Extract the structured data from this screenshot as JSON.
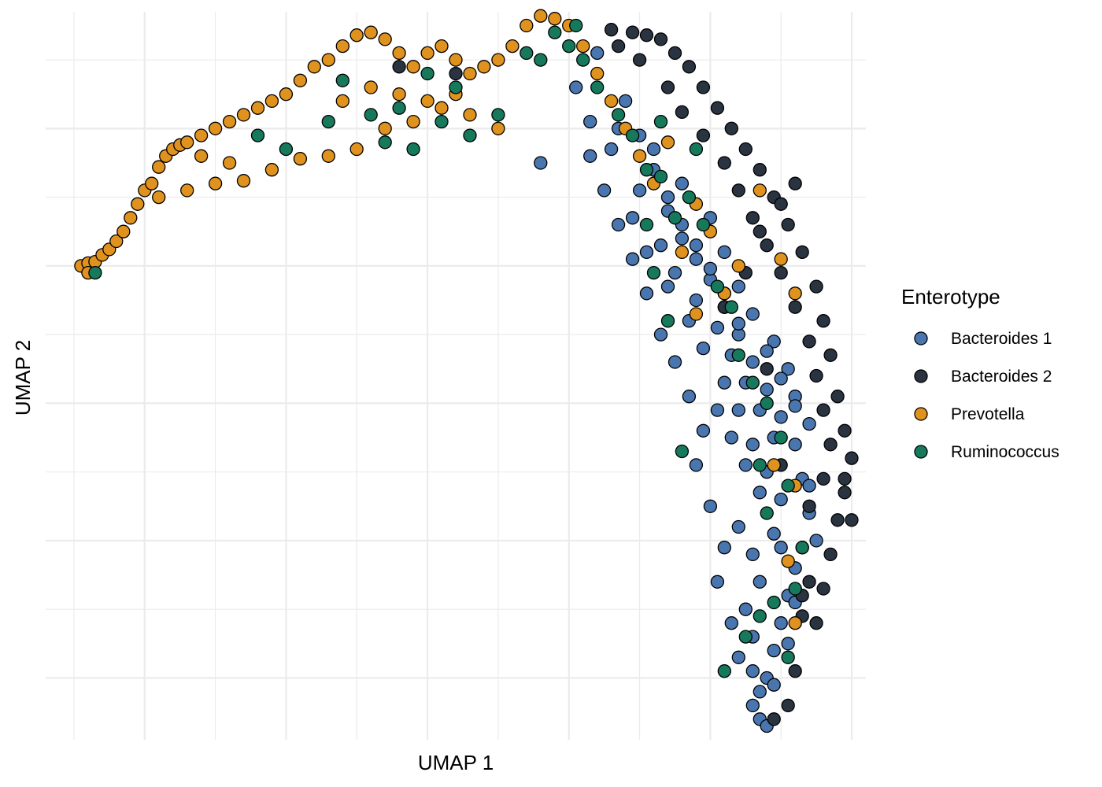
{
  "chart_data": {
    "type": "scatter",
    "title": "",
    "xlabel": "UMAP 1",
    "ylabel": "UMAP 2",
    "xlim": [
      -3.7,
      2.1
    ],
    "ylim": [
      -3.45,
      1.85
    ],
    "x_major_ticks": [
      -3,
      -2,
      -1,
      0,
      1,
      2
    ],
    "y_major_ticks": [
      -3,
      -2,
      -1,
      0,
      1
    ],
    "tick_labels_visible": false,
    "grid": true,
    "legend": {
      "title": "Enterotype",
      "position": "right"
    },
    "series": [
      {
        "name": "Bacteroides 1",
        "color": "#4a76b0",
        "points": [
          [
            -0.2,
            0.75
          ],
          [
            0.05,
            1.3
          ],
          [
            0.15,
            1.05
          ],
          [
            0.2,
            1.55
          ],
          [
            0.35,
            1.0
          ],
          [
            0.4,
            1.2
          ],
          [
            0.5,
            0.95
          ],
          [
            0.6,
            0.7
          ],
          [
            0.7,
            0.4
          ],
          [
            0.8,
            0.2
          ],
          [
            0.9,
            0.05
          ],
          [
            1.0,
            -0.1
          ],
          [
            1.1,
            -0.3
          ],
          [
            1.2,
            -0.5
          ],
          [
            1.3,
            -0.7
          ],
          [
            1.4,
            -0.9
          ],
          [
            1.5,
            -1.1
          ],
          [
            1.6,
            -1.3
          ],
          [
            1.65,
            -1.55
          ],
          [
            1.7,
            -1.8
          ],
          [
            1.75,
            -2.0
          ],
          [
            1.6,
            -2.2
          ],
          [
            1.55,
            -2.4
          ],
          [
            1.5,
            -2.6
          ],
          [
            1.45,
            -2.8
          ],
          [
            1.4,
            -3.0
          ],
          [
            1.35,
            -3.1
          ],
          [
            1.3,
            -3.2
          ],
          [
            1.35,
            -3.3
          ],
          [
            1.4,
            -3.35
          ],
          [
            0.3,
            0.85
          ],
          [
            0.5,
            0.55
          ],
          [
            0.65,
            0.15
          ],
          [
            0.75,
            -0.05
          ],
          [
            0.9,
            -0.25
          ],
          [
            1.05,
            -0.45
          ],
          [
            1.15,
            -0.65
          ],
          [
            1.25,
            -0.85
          ],
          [
            1.35,
            -1.05
          ],
          [
            1.45,
            -1.25
          ],
          [
            0.45,
            0.35
          ],
          [
            0.55,
            0.1
          ],
          [
            0.7,
            -0.15
          ],
          [
            0.85,
            -0.4
          ],
          [
            0.95,
            -0.6
          ],
          [
            1.1,
            -0.85
          ],
          [
            1.2,
            -1.05
          ],
          [
            1.3,
            -1.3
          ],
          [
            1.4,
            -1.5
          ],
          [
            1.5,
            -1.7
          ],
          [
            0.6,
            0.85
          ],
          [
            0.8,
            0.6
          ],
          [
            1.0,
            0.35
          ],
          [
            1.1,
            0.1
          ],
          [
            1.2,
            -0.15
          ],
          [
            1.3,
            -0.35
          ],
          [
            1.45,
            -0.55
          ],
          [
            1.55,
            -0.75
          ],
          [
            1.6,
            -0.95
          ],
          [
            1.7,
            -1.15
          ],
          [
            1.2,
            -1.9
          ],
          [
            1.3,
            -2.1
          ],
          [
            1.35,
            -2.3
          ],
          [
            1.25,
            -2.5
          ],
          [
            1.3,
            -2.7
          ],
          [
            1.2,
            -2.85
          ],
          [
            1.15,
            -2.6
          ],
          [
            1.05,
            -2.3
          ],
          [
            1.1,
            -2.05
          ],
          [
            1.0,
            -1.75
          ],
          [
            0.9,
            -1.45
          ],
          [
            0.95,
            -1.2
          ],
          [
            0.85,
            -0.95
          ],
          [
            0.75,
            -0.7
          ],
          [
            0.65,
            -0.5
          ],
          [
            0.55,
            -0.2
          ],
          [
            0.45,
            0.05
          ],
          [
            0.35,
            0.3
          ],
          [
            0.25,
            0.55
          ],
          [
            0.15,
            0.8
          ],
          [
            1.5,
            -2.05
          ],
          [
            1.6,
            -2.45
          ],
          [
            1.55,
            -2.75
          ],
          [
            1.45,
            -3.05
          ],
          [
            1.3,
            -2.95
          ],
          [
            1.45,
            -1.95
          ],
          [
            1.35,
            -1.65
          ],
          [
            1.25,
            -1.45
          ],
          [
            1.15,
            -1.25
          ],
          [
            1.05,
            -1.05
          ],
          [
            0.7,
            0.5
          ],
          [
            0.8,
            0.3
          ],
          [
            0.9,
            0.15
          ],
          [
            1.0,
            -0.02
          ],
          [
            1.1,
            -0.2
          ],
          [
            1.2,
            -0.42
          ],
          [
            1.4,
            -0.62
          ],
          [
            1.5,
            -0.82
          ],
          [
            1.6,
            -1.02
          ],
          [
            1.7,
            -1.6
          ]
        ]
      },
      {
        "name": "Bacteroides 2",
        "color": "#2a3340",
        "points": [
          [
            -1.2,
            1.45
          ],
          [
            -0.8,
            1.4
          ],
          [
            0.3,
            1.72
          ],
          [
            0.45,
            1.7
          ],
          [
            0.55,
            1.68
          ],
          [
            0.65,
            1.65
          ],
          [
            0.75,
            1.55
          ],
          [
            0.85,
            1.45
          ],
          [
            0.95,
            1.3
          ],
          [
            1.05,
            1.15
          ],
          [
            1.15,
            1.0
          ],
          [
            1.25,
            0.85
          ],
          [
            1.35,
            0.7
          ],
          [
            1.45,
            0.5
          ],
          [
            1.55,
            0.3
          ],
          [
            1.65,
            0.1
          ],
          [
            1.75,
            -0.15
          ],
          [
            1.8,
            -0.4
          ],
          [
            1.85,
            -0.65
          ],
          [
            1.9,
            -0.95
          ],
          [
            1.95,
            -1.2
          ],
          [
            2.0,
            -1.4
          ],
          [
            1.95,
            -1.65
          ],
          [
            1.9,
            -1.85
          ],
          [
            1.85,
            -2.1
          ],
          [
            1.8,
            -2.35
          ],
          [
            1.75,
            -2.6
          ],
          [
            1.6,
            -2.95
          ],
          [
            1.55,
            -3.2
          ],
          [
            1.45,
            -3.3
          ],
          [
            0.35,
            1.6
          ],
          [
            0.5,
            1.5
          ],
          [
            0.7,
            1.3
          ],
          [
            0.8,
            1.12
          ],
          [
            0.95,
            0.95
          ],
          [
            1.1,
            0.75
          ],
          [
            1.2,
            0.55
          ],
          [
            1.3,
            0.35
          ],
          [
            1.4,
            0.15
          ],
          [
            1.5,
            -0.05
          ],
          [
            1.6,
            -0.3
          ],
          [
            1.7,
            -0.55
          ],
          [
            1.75,
            -0.8
          ],
          [
            1.8,
            -1.05
          ],
          [
            1.85,
            -1.3
          ],
          [
            1.8,
            -1.55
          ],
          [
            1.7,
            -1.75
          ],
          [
            1.65,
            -2.05
          ],
          [
            1.7,
            -2.3
          ],
          [
            1.65,
            -2.55
          ],
          [
            1.1,
            -0.3
          ],
          [
            1.25,
            -0.05
          ],
          [
            1.35,
            0.25
          ],
          [
            1.5,
            0.45
          ],
          [
            1.6,
            0.6
          ],
          [
            1.65,
            -2.4
          ],
          [
            1.5,
            -1.45
          ],
          [
            1.4,
            -0.75
          ],
          [
            1.95,
            -1.55
          ],
          [
            2.0,
            -1.85
          ]
        ]
      },
      {
        "name": "Prevotella",
        "color": "#e0921f",
        "points": [
          [
            -3.45,
            0.0
          ],
          [
            -3.4,
            0.02
          ],
          [
            -3.35,
            0.03
          ],
          [
            -3.4,
            -0.05
          ],
          [
            -3.3,
            0.08
          ],
          [
            -3.25,
            0.12
          ],
          [
            -3.2,
            0.18
          ],
          [
            -3.15,
            0.25
          ],
          [
            -3.1,
            0.35
          ],
          [
            -3.05,
            0.45
          ],
          [
            -3.0,
            0.55
          ],
          [
            -2.95,
            0.6
          ],
          [
            -2.9,
            0.72
          ],
          [
            -2.85,
            0.8
          ],
          [
            -2.8,
            0.85
          ],
          [
            -2.75,
            0.88
          ],
          [
            -2.7,
            0.9
          ],
          [
            -2.6,
            0.95
          ],
          [
            -2.5,
            1.0
          ],
          [
            -2.4,
            1.05
          ],
          [
            -2.3,
            1.1
          ],
          [
            -2.2,
            1.15
          ],
          [
            -2.1,
            1.2
          ],
          [
            -2.0,
            1.25
          ],
          [
            -1.9,
            1.35
          ],
          [
            -1.8,
            1.45
          ],
          [
            -1.7,
            1.5
          ],
          [
            -1.6,
            1.6
          ],
          [
            -1.5,
            1.68
          ],
          [
            -1.4,
            1.7
          ],
          [
            -1.3,
            1.65
          ],
          [
            -1.2,
            1.55
          ],
          [
            -1.1,
            1.45
          ],
          [
            -1.0,
            1.55
          ],
          [
            -0.9,
            1.6
          ],
          [
            -0.8,
            1.5
          ],
          [
            -0.7,
            1.4
          ],
          [
            -0.6,
            1.45
          ],
          [
            -0.5,
            1.5
          ],
          [
            -0.4,
            1.6
          ],
          [
            -0.3,
            1.75
          ],
          [
            -0.2,
            1.82
          ],
          [
            -0.1,
            1.8
          ],
          [
            0.0,
            1.75
          ],
          [
            0.1,
            1.6
          ],
          [
            0.2,
            1.4
          ],
          [
            0.3,
            1.2
          ],
          [
            0.4,
            1.0
          ],
          [
            0.5,
            0.8
          ],
          [
            0.6,
            0.6
          ],
          [
            -2.9,
            0.5
          ],
          [
            -2.7,
            0.55
          ],
          [
            -2.5,
            0.6
          ],
          [
            -2.3,
            0.62
          ],
          [
            -2.1,
            0.7
          ],
          [
            -1.9,
            0.78
          ],
          [
            -1.7,
            0.8
          ],
          [
            -1.5,
            0.85
          ],
          [
            -1.3,
            1.0
          ],
          [
            -1.1,
            1.05
          ],
          [
            -0.9,
            1.15
          ],
          [
            -0.7,
            1.1
          ],
          [
            -0.5,
            1.0
          ],
          [
            -1.6,
            1.2
          ],
          [
            -1.4,
            1.3
          ],
          [
            -1.2,
            1.25
          ],
          [
            -1.0,
            1.2
          ],
          [
            -0.8,
            1.25
          ],
          [
            -2.6,
            0.8
          ],
          [
            -2.4,
            0.75
          ],
          [
            0.7,
            0.9
          ],
          [
            0.9,
            0.45
          ],
          [
            1.0,
            0.25
          ],
          [
            1.2,
            0.0
          ],
          [
            1.35,
            0.55
          ],
          [
            1.5,
            0.05
          ],
          [
            1.6,
            -0.2
          ],
          [
            1.6,
            -1.6
          ],
          [
            1.55,
            -2.15
          ],
          [
            1.6,
            -2.6
          ],
          [
            1.45,
            -1.45
          ],
          [
            1.1,
            -0.2
          ],
          [
            0.9,
            -0.35
          ],
          [
            0.8,
            0.1
          ]
        ]
      },
      {
        "name": "Ruminococcus",
        "color": "#17795c",
        "points": [
          [
            -3.35,
            -0.05
          ],
          [
            -2.2,
            0.95
          ],
          [
            -2.0,
            0.85
          ],
          [
            -1.7,
            1.05
          ],
          [
            -1.6,
            1.35
          ],
          [
            -1.4,
            1.1
          ],
          [
            -1.3,
            0.9
          ],
          [
            -1.2,
            1.15
          ],
          [
            -1.1,
            0.85
          ],
          [
            -1.0,
            1.4
          ],
          [
            -0.9,
            1.05
          ],
          [
            -0.8,
            1.3
          ],
          [
            -0.7,
            0.95
          ],
          [
            -0.5,
            1.1
          ],
          [
            -0.3,
            1.55
          ],
          [
            -0.2,
            1.5
          ],
          [
            -0.1,
            1.7
          ],
          [
            0.0,
            1.6
          ],
          [
            0.05,
            1.75
          ],
          [
            0.1,
            1.5
          ],
          [
            0.2,
            1.3
          ],
          [
            0.35,
            1.1
          ],
          [
            0.45,
            0.95
          ],
          [
            0.55,
            0.7
          ],
          [
            0.65,
            0.65
          ],
          [
            0.75,
            0.35
          ],
          [
            0.85,
            0.5
          ],
          [
            0.95,
            0.3
          ],
          [
            1.05,
            -0.15
          ],
          [
            1.15,
            -0.3
          ],
          [
            1.2,
            -0.65
          ],
          [
            1.3,
            -0.85
          ],
          [
            1.4,
            -1.0
          ],
          [
            1.5,
            -1.25
          ],
          [
            1.35,
            -1.45
          ],
          [
            1.4,
            -1.8
          ],
          [
            1.55,
            -1.6
          ],
          [
            1.65,
            -2.05
          ],
          [
            1.6,
            -2.35
          ],
          [
            1.45,
            -2.45
          ],
          [
            1.35,
            -2.55
          ],
          [
            1.25,
            -2.7
          ],
          [
            1.55,
            -2.85
          ],
          [
            1.1,
            -2.95
          ],
          [
            0.8,
            -1.35
          ],
          [
            0.7,
            -0.4
          ],
          [
            0.6,
            -0.05
          ],
          [
            0.55,
            0.3
          ],
          [
            0.65,
            1.05
          ],
          [
            0.9,
            0.85
          ]
        ]
      }
    ]
  }
}
